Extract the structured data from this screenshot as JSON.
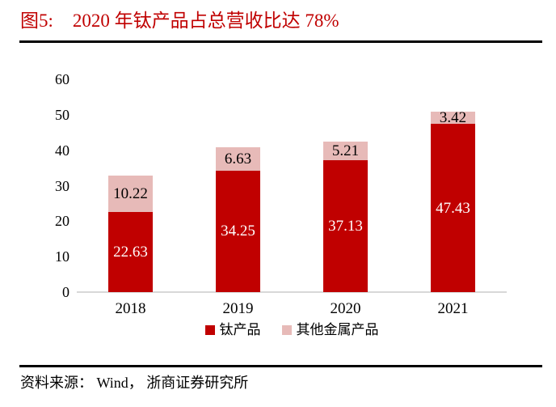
{
  "figure": {
    "label": "图5:",
    "title": "2020 年钛产品占总营收比达 78%"
  },
  "source": {
    "text": "资料来源： Wind， 浙商证券研究所"
  },
  "colors": {
    "title_red": "#c00000",
    "bar_primary": "#c00000",
    "bar_secondary": "#e7bab8",
    "axis_line_gray": "#d8d8d8",
    "divider_black": "#000000",
    "text_black": "#000000",
    "label_on_primary": "#ffffff",
    "label_on_secondary": "#000000"
  },
  "chart_data": {
    "type": "bar",
    "stacked": true,
    "title": "2020 年钛产品占总营收比达 78%",
    "categories": [
      "2018",
      "2019",
      "2020",
      "2021"
    ],
    "series": [
      {
        "name": "钛产品",
        "color": "#c00000",
        "label_color": "#ffffff",
        "values": [
          22.63,
          34.25,
          37.13,
          47.43
        ]
      },
      {
        "name": "其他金属产品",
        "color": "#e7bab8",
        "label_color": "#000000",
        "values": [
          10.22,
          6.63,
          5.21,
          3.42
        ]
      }
    ],
    "xlabel": "",
    "ylabel": "",
    "ylim": [
      0,
      60
    ],
    "yticks": [
      0,
      10,
      20,
      30,
      40,
      50,
      60
    ],
    "grid": false,
    "legend_position": "bottom",
    "value_labels_decimals": 2
  }
}
